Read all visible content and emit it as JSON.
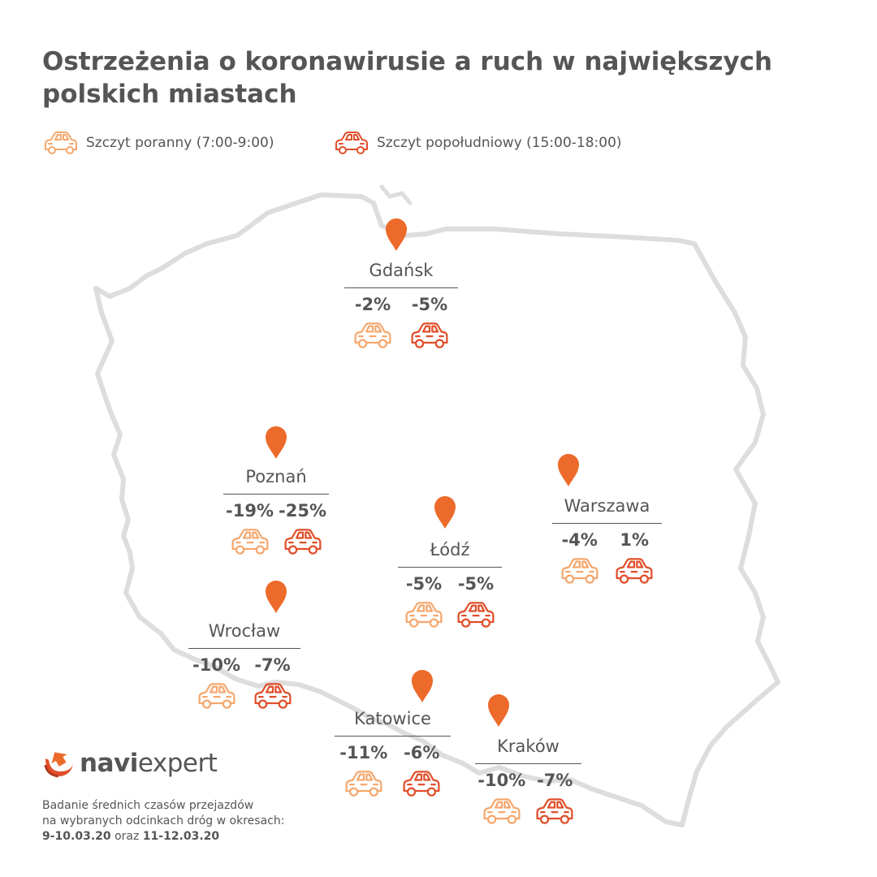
{
  "title": "Ostrzeżenia o koronawirusie a ruch w największych polskich miastach",
  "colors": {
    "morning": "#F5A76D",
    "afternoon": "#E14E2A",
    "pin": "#EC6A2A",
    "text": "#555555",
    "border": "#DDDDDD"
  },
  "legend": {
    "morning": {
      "label": "Szczyt poranny (7:00-9:00)",
      "icon": "car-outline-icon"
    },
    "afternoon": {
      "label": "Szczyt popołudniowy (15:00-18:00)",
      "icon": "car-outline-icon"
    }
  },
  "cities": [
    {
      "name": "Gdańsk",
      "morning": "-2%",
      "afternoon": "-5%"
    },
    {
      "name": "Poznań",
      "morning": "-19%",
      "afternoon": "-25%"
    },
    {
      "name": "Warszawa",
      "morning": "-4%",
      "afternoon": "1%"
    },
    {
      "name": "Łódź",
      "morning": "-5%",
      "afternoon": "-5%"
    },
    {
      "name": "Wrocław",
      "morning": "-10%",
      "afternoon": "-7%"
    },
    {
      "name": "Katowice",
      "morning": "-11%",
      "afternoon": "-6%"
    },
    {
      "name": "Kraków",
      "morning": "-10%",
      "afternoon": "-7%"
    }
  ],
  "logo": {
    "bold": "navi",
    "regular": "expert",
    "icon": "navi-expert-logo-icon"
  },
  "note": {
    "line1": "Badanie średnich czasów przejazdów",
    "line2": "na wybranych odcinkach dróg w okresach:",
    "range1": "9-10.03.20",
    "connector": "oraz",
    "range2": "11-12.03.20"
  }
}
